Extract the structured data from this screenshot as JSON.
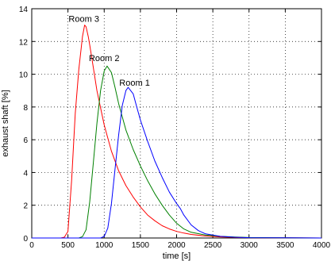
{
  "chart_data": {
    "type": "line",
    "xlabel": "time [s]",
    "ylabel": "exhaust shaft [%]",
    "xlim": [
      0,
      4000
    ],
    "ylim": [
      0,
      14
    ],
    "xticks": [
      "0",
      "500",
      "1000",
      "1500",
      "2000",
      "2500",
      "3000",
      "3500",
      "4000"
    ],
    "yticks": [
      "0",
      "2",
      "4",
      "6",
      "8",
      "10",
      "12",
      "14"
    ],
    "grid": true,
    "series": [
      {
        "name": "Room 3",
        "color": "#ff0000",
        "x": [
          0,
          400,
          450,
          500,
          550,
          600,
          650,
          700,
          730,
          750,
          780,
          800,
          850,
          900,
          1000,
          1100,
          1200,
          1300,
          1400,
          1500,
          1600,
          1700,
          1800,
          1900,
          2000,
          2100,
          2200,
          2400,
          2600,
          2800,
          3000,
          3500,
          4000
        ],
        "y": [
          0,
          0,
          0.05,
          0.4,
          3.5,
          7.6,
          10.3,
          12.3,
          13.0,
          12.9,
          12.3,
          11.8,
          10.4,
          9.0,
          6.9,
          5.3,
          4.1,
          3.2,
          2.5,
          1.9,
          1.4,
          1.05,
          0.75,
          0.55,
          0.4,
          0.3,
          0.22,
          0.12,
          0.07,
          0.04,
          0.02,
          0.01,
          0
        ]
      },
      {
        "name": "Room 2",
        "color": "#008000",
        "x": [
          0,
          650,
          700,
          750,
          800,
          850,
          900,
          950,
          1000,
          1040,
          1100,
          1150,
          1200,
          1300,
          1400,
          1500,
          1600,
          1700,
          1800,
          1900,
          2000,
          2100,
          2200,
          2400,
          2600,
          2800,
          3000,
          3500,
          4000
        ],
        "y": [
          0,
          0,
          0.08,
          0.5,
          2.2,
          4.6,
          7.0,
          9.0,
          10.2,
          10.5,
          10.1,
          9.2,
          8.2,
          6.6,
          5.4,
          4.4,
          3.5,
          2.7,
          2.0,
          1.4,
          0.9,
          0.55,
          0.35,
          0.18,
          0.1,
          0.06,
          0.03,
          0.01,
          0
        ]
      },
      {
        "name": "Room 1",
        "color": "#0000ff",
        "x": [
          0,
          950,
          1000,
          1050,
          1100,
          1150,
          1200,
          1250,
          1300,
          1330,
          1400,
          1450,
          1500,
          1600,
          1700,
          1800,
          1900,
          2000,
          2050,
          2100,
          2200,
          2300,
          2400,
          2600,
          2800,
          3000,
          3500,
          4000
        ],
        "y": [
          0,
          0,
          0.1,
          0.6,
          2.1,
          4.2,
          6.3,
          8.1,
          9.0,
          9.2,
          8.8,
          8.0,
          7.2,
          5.9,
          4.7,
          3.7,
          2.8,
          2.1,
          1.8,
          1.4,
          0.8,
          0.45,
          0.25,
          0.1,
          0.05,
          0.02,
          0.01,
          0
        ]
      }
    ],
    "annotations": [
      {
        "text": "Room 3",
        "x": 720,
        "y": 13.2
      },
      {
        "text": "Room 2",
        "x": 1000,
        "y": 10.8
      },
      {
        "text": "Room 1",
        "x": 1420,
        "y": 9.3
      }
    ]
  }
}
